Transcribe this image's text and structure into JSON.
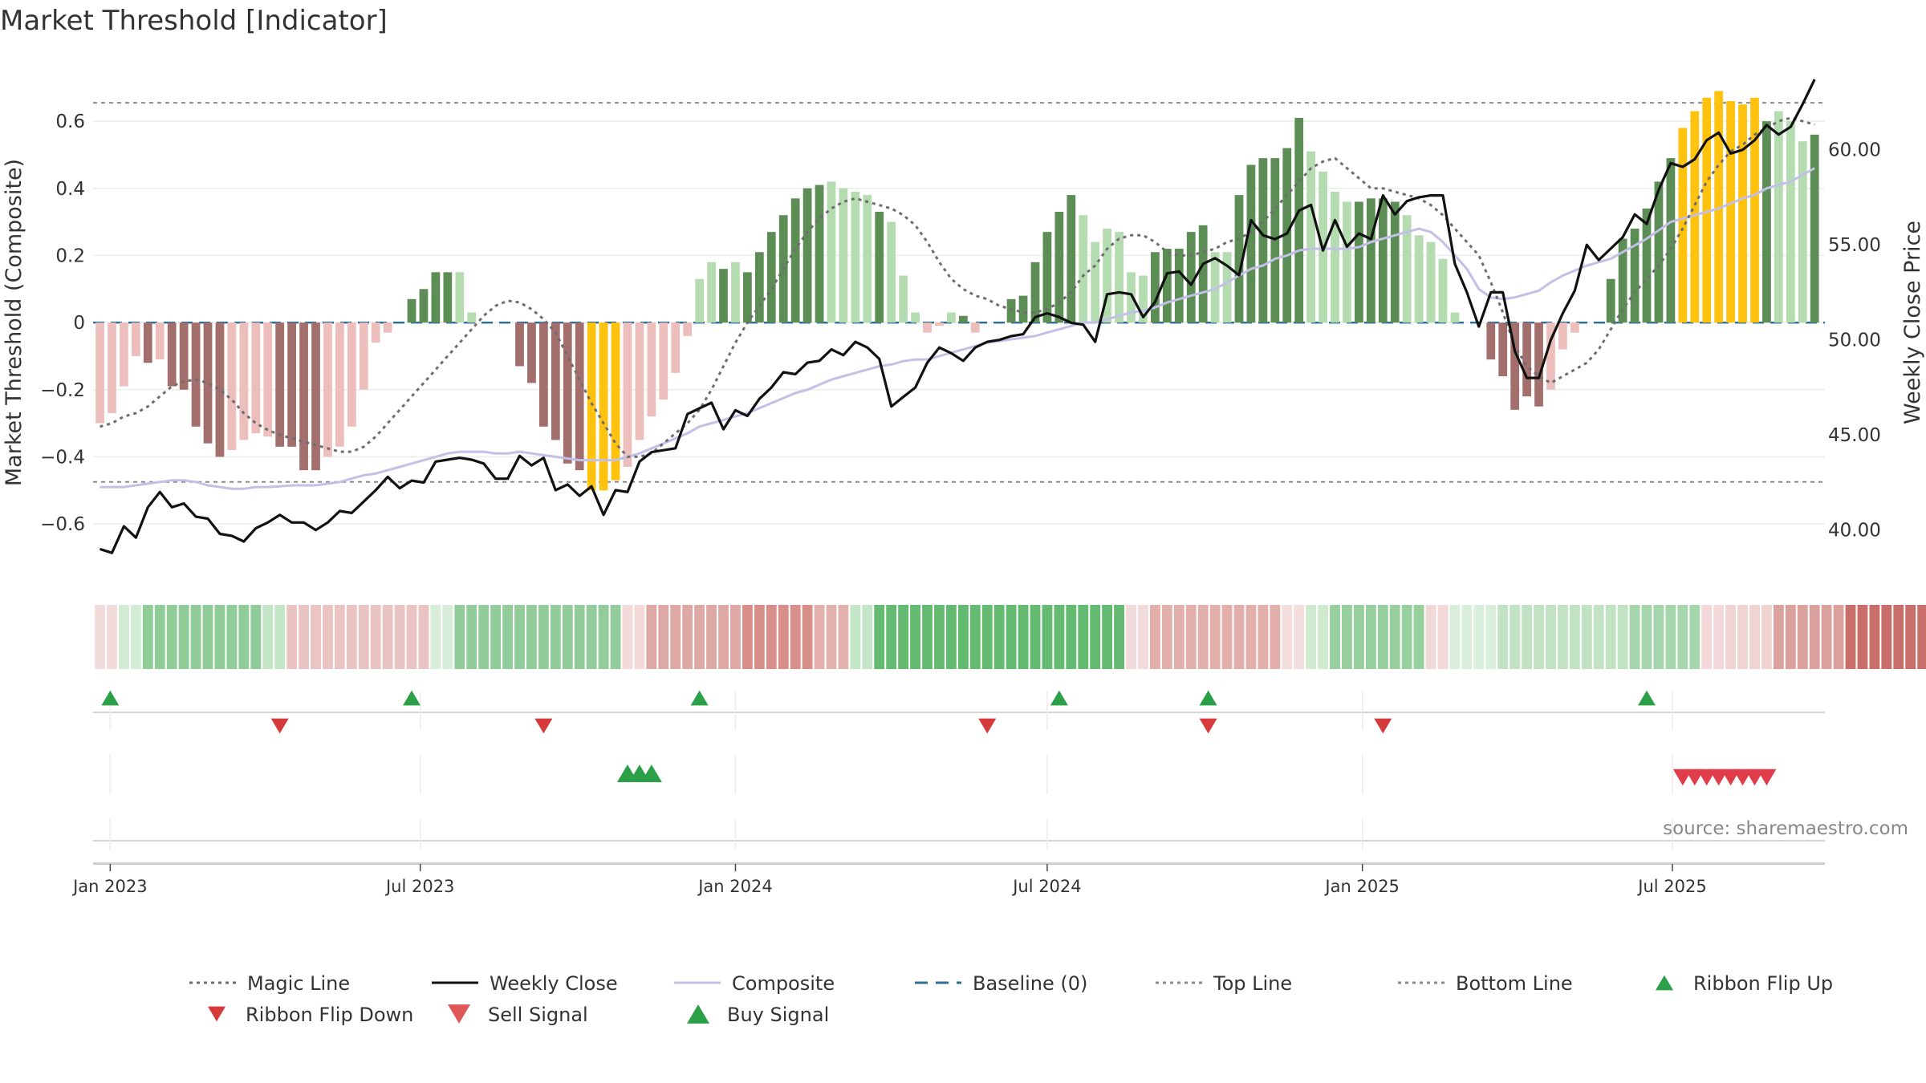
{
  "title": "Market Threshold [Indicator]",
  "source": "source: sharemaestro.com",
  "chart_data": {
    "type": "bar",
    "x_start": "2022-12-26",
    "x_step_days": 7,
    "x_range": [
      "2022-12-22",
      "2025-09-28"
    ],
    "y_left_label": "Market Threshold (Composite)",
    "y_left_range": [
      -0.76,
      0.77
    ],
    "y_left_ticks": [
      "0.6",
      "0.4",
      "0.2",
      "0",
      "−0.2",
      "−0.4",
      "−0.6"
    ],
    "y_right_label": "Weekly Close Price",
    "y_right_range": [
      37.5,
      64.5
    ],
    "y_right_ticks": [
      "60.00",
      "55.00",
      "50.00",
      "45.00",
      "40.00"
    ],
    "x_ticks": [
      {
        "label": "Jan 2023",
        "date": "2023-01-01"
      },
      {
        "label": "Jul 2023",
        "date": "2023-07-01"
      },
      {
        "label": "Jan 2024",
        "date": "2024-01-01"
      },
      {
        "label": "Jul 2024",
        "date": "2024-07-01"
      },
      {
        "label": "Jan 2025",
        "date": "2025-01-01"
      },
      {
        "label": "Jul 2025",
        "date": "2025-07-01"
      }
    ],
    "top_line": 0.655,
    "bottom_line": -0.475,
    "grid": true,
    "legend_position": "bottom",
    "colors": {
      "strong_up": "#5b8d55",
      "weak_up": "#b5dbb0",
      "strong_down": "#a36f6c",
      "weak_down": "#ecbfbc",
      "extreme": "#ffc20e",
      "close": "#111111",
      "composite": "#c3bfe6",
      "magic": "#6e6e6e",
      "baseline": "#2e6f96",
      "buy": "#2ca048",
      "sell": "#d73a3a"
    },
    "series": {
      "composite_bars": [
        -0.3,
        -0.27,
        -0.19,
        -0.1,
        -0.12,
        -0.11,
        -0.19,
        -0.2,
        -0.31,
        -0.36,
        -0.4,
        -0.38,
        -0.35,
        -0.33,
        -0.34,
        -0.37,
        -0.37,
        -0.44,
        -0.44,
        -0.4,
        -0.37,
        -0.31,
        -0.2,
        -0.06,
        -0.03,
        0.0,
        0.07,
        0.1,
        0.15,
        0.15,
        0.15,
        0.03,
        0.0,
        0.0,
        0.0,
        -0.13,
        -0.18,
        -0.31,
        -0.35,
        -0.42,
        -0.44,
        -0.5,
        -0.5,
        -0.47,
        -0.43,
        -0.35,
        -0.28,
        -0.23,
        -0.15,
        -0.04,
        0.13,
        0.18,
        0.16,
        0.18,
        0.15,
        0.21,
        0.27,
        0.32,
        0.37,
        0.4,
        0.41,
        0.42,
        0.4,
        0.39,
        0.38,
        0.33,
        0.3,
        0.14,
        0.03,
        -0.03,
        -0.01,
        0.03,
        0.02,
        -0.03,
        0.0,
        0.0,
        0.07,
        0.08,
        0.18,
        0.27,
        0.33,
        0.38,
        0.32,
        0.24,
        0.28,
        0.27,
        0.15,
        0.14,
        0.21,
        0.22,
        0.22,
        0.27,
        0.29,
        0.21,
        0.21,
        0.38,
        0.47,
        0.49,
        0.49,
        0.52,
        0.61,
        0.51,
        0.45,
        0.39,
        0.36,
        0.36,
        0.37,
        0.37,
        0.36,
        0.32,
        0.26,
        0.24,
        0.19,
        0.03,
        0.0,
        0.0,
        -0.11,
        -0.16,
        -0.26,
        -0.22,
        -0.25,
        -0.2,
        -0.08,
        -0.03,
        0.0,
        0.0,
        0.13,
        0.25,
        0.28,
        0.34,
        0.42,
        0.49,
        0.58,
        0.63,
        0.67,
        0.69,
        0.66,
        0.65,
        0.67,
        0.6,
        0.63,
        0.6,
        0.54,
        0.56
      ],
      "bar_types": [
        "W",
        "W",
        "W",
        "W",
        "S",
        "W",
        "S",
        "S",
        "S",
        "S",
        "S",
        "W",
        "W",
        "W",
        "W",
        "S",
        "S",
        "S",
        "S",
        "W",
        "W",
        "W",
        "W",
        "W",
        "W",
        "W",
        "S",
        "S",
        "S",
        "S",
        "W",
        "W",
        "W",
        "W",
        "W",
        "S",
        "S",
        "S",
        "S",
        "S",
        "S",
        "E",
        "E",
        "E",
        "W",
        "W",
        "W",
        "W",
        "W",
        "W",
        "W",
        "W",
        "S",
        "W",
        "S",
        "S",
        "S",
        "S",
        "S",
        "S",
        "S",
        "W",
        "W",
        "W",
        "W",
        "S",
        "W",
        "W",
        "W",
        "W",
        "W",
        "W",
        "S",
        "W",
        "W",
        "W",
        "S",
        "S",
        "S",
        "S",
        "S",
        "S",
        "W",
        "W",
        "W",
        "W",
        "W",
        "W",
        "S",
        "S",
        "S",
        "S",
        "S",
        "W",
        "W",
        "S",
        "S",
        "S",
        "S",
        "S",
        "S",
        "W",
        "W",
        "W",
        "W",
        "S",
        "S",
        "S",
        "S",
        "W",
        "W",
        "W",
        "W",
        "W",
        "W",
        "W",
        "S",
        "S",
        "S",
        "S",
        "S",
        "W",
        "W",
        "W",
        "W",
        "W",
        "S",
        "S",
        "S",
        "S",
        "S",
        "S",
        "E",
        "E",
        "E",
        "E",
        "E",
        "E",
        "E",
        "S",
        "W",
        "W",
        "W",
        "S"
      ],
      "weekly_close": [
        39.0,
        38.8,
        40.2,
        39.6,
        41.2,
        42.0,
        41.2,
        41.4,
        40.7,
        40.6,
        39.8,
        39.7,
        39.4,
        40.1,
        40.4,
        40.8,
        40.4,
        40.4,
        40.0,
        40.4,
        41.0,
        40.9,
        41.5,
        42.1,
        42.8,
        42.2,
        42.6,
        42.5,
        43.6,
        43.7,
        43.8,
        43.7,
        43.5,
        42.7,
        42.7,
        43.9,
        43.4,
        43.8,
        42.1,
        42.4,
        41.8,
        42.3,
        40.8,
        42.1,
        42.0,
        43.6,
        44.1,
        44.2,
        44.3,
        46.1,
        46.4,
        46.7,
        45.3,
        46.3,
        46.0,
        46.9,
        47.5,
        48.3,
        48.2,
        48.8,
        48.9,
        49.5,
        49.2,
        49.9,
        49.6,
        49.0,
        46.5,
        47.0,
        47.5,
        48.8,
        49.6,
        49.3,
        48.9,
        49.6,
        49.9,
        50.0,
        50.2,
        50.3,
        51.2,
        51.4,
        51.2,
        50.9,
        50.8,
        49.9,
        52.4,
        52.5,
        52.4,
        51.2,
        52.0,
        53.5,
        53.6,
        52.9,
        54.0,
        54.3,
        53.9,
        53.4,
        56.3,
        55.5,
        55.3,
        55.6,
        56.8,
        57.1,
        54.7,
        56.3,
        54.9,
        55.6,
        55.3,
        57.6,
        56.6,
        57.3,
        57.5,
        57.6,
        57.6,
        54.0,
        52.5,
        50.7,
        52.5,
        52.5,
        49.4,
        48.0,
        48.0,
        50.0,
        51.4,
        52.6,
        55.0,
        54.2,
        54.8,
        55.4,
        56.6,
        56.1,
        57.9,
        59.3,
        59.1,
        59.5,
        60.5,
        60.9,
        59.8,
        60.0,
        60.5,
        61.3,
        60.8,
        61.2,
        62.4,
        63.7
      ],
      "composite_line": [
        -0.49,
        -0.49,
        -0.49,
        -0.485,
        -0.48,
        -0.475,
        -0.47,
        -0.47,
        -0.475,
        -0.485,
        -0.49,
        -0.495,
        -0.495,
        -0.49,
        -0.49,
        -0.488,
        -0.485,
        -0.485,
        -0.485,
        -0.48,
        -0.475,
        -0.465,
        -0.455,
        -0.45,
        -0.44,
        -0.43,
        -0.42,
        -0.41,
        -0.4,
        -0.39,
        -0.385,
        -0.385,
        -0.385,
        -0.39,
        -0.39,
        -0.385,
        -0.39,
        -0.395,
        -0.4,
        -0.405,
        -0.41,
        -0.41,
        -0.41,
        -0.41,
        -0.4,
        -0.39,
        -0.375,
        -0.36,
        -0.345,
        -0.33,
        -0.31,
        -0.3,
        -0.29,
        -0.28,
        -0.27,
        -0.255,
        -0.24,
        -0.225,
        -0.21,
        -0.2,
        -0.185,
        -0.17,
        -0.16,
        -0.15,
        -0.14,
        -0.13,
        -0.125,
        -0.115,
        -0.11,
        -0.11,
        -0.1,
        -0.09,
        -0.08,
        -0.07,
        -0.06,
        -0.055,
        -0.05,
        -0.045,
        -0.04,
        -0.03,
        -0.02,
        -0.01,
        0.0,
        0.0,
        0.01,
        0.02,
        0.03,
        0.035,
        0.045,
        0.06,
        0.07,
        0.08,
        0.09,
        0.1,
        0.12,
        0.14,
        0.16,
        0.17,
        0.19,
        0.2,
        0.215,
        0.22,
        0.22,
        0.22,
        0.22,
        0.225,
        0.24,
        0.25,
        0.26,
        0.27,
        0.28,
        0.27,
        0.24,
        0.2,
        0.16,
        0.1,
        0.075,
        0.07,
        0.075,
        0.085,
        0.095,
        0.12,
        0.14,
        0.155,
        0.17,
        0.18,
        0.19,
        0.21,
        0.23,
        0.25,
        0.275,
        0.3,
        0.31,
        0.32,
        0.33,
        0.34,
        0.355,
        0.37,
        0.38,
        0.4,
        0.41,
        0.42,
        0.44,
        0.46
      ],
      "magic_line": [
        -0.31,
        -0.3,
        -0.28,
        -0.27,
        -0.25,
        -0.22,
        -0.19,
        -0.175,
        -0.17,
        -0.18,
        -0.2,
        -0.23,
        -0.27,
        -0.3,
        -0.32,
        -0.335,
        -0.345,
        -0.355,
        -0.365,
        -0.375,
        -0.385,
        -0.385,
        -0.37,
        -0.34,
        -0.3,
        -0.26,
        -0.22,
        -0.18,
        -0.14,
        -0.1,
        -0.06,
        -0.02,
        0.02,
        0.05,
        0.065,
        0.06,
        0.04,
        0.01,
        -0.03,
        -0.1,
        -0.17,
        -0.24,
        -0.3,
        -0.36,
        -0.4,
        -0.4,
        -0.39,
        -0.36,
        -0.33,
        -0.3,
        -0.26,
        -0.2,
        -0.13,
        -0.06,
        0.0,
        0.05,
        0.1,
        0.16,
        0.22,
        0.27,
        0.31,
        0.34,
        0.36,
        0.37,
        0.36,
        0.35,
        0.34,
        0.32,
        0.29,
        0.24,
        0.18,
        0.13,
        0.1,
        0.08,
        0.07,
        0.05,
        0.04,
        0.03,
        0.03,
        0.04,
        0.06,
        0.09,
        0.14,
        0.17,
        0.22,
        0.25,
        0.26,
        0.26,
        0.24,
        0.21,
        0.2,
        0.2,
        0.21,
        0.22,
        0.24,
        0.25,
        0.27,
        0.3,
        0.34,
        0.38,
        0.42,
        0.46,
        0.48,
        0.49,
        0.46,
        0.43,
        0.4,
        0.4,
        0.39,
        0.38,
        0.37,
        0.35,
        0.32,
        0.28,
        0.24,
        0.2,
        0.12,
        0.03,
        -0.07,
        -0.13,
        -0.16,
        -0.18,
        -0.16,
        -0.14,
        -0.12,
        -0.08,
        -0.02,
        0.04,
        0.09,
        0.13,
        0.17,
        0.22,
        0.28,
        0.35,
        0.42,
        0.47,
        0.51,
        0.53,
        0.56,
        0.58,
        0.6,
        0.61,
        0.6,
        0.59
      ]
    },
    "ribbon": [
      {
        "n": 2,
        "color": "#f2dcdb"
      },
      {
        "n": 2,
        "color": "#d3ecd5"
      },
      {
        "n": 10,
        "color": "#8fcc98"
      },
      {
        "n": 2,
        "color": "#c4e6c8"
      },
      {
        "n": 12,
        "color": "#eac4c2"
      },
      {
        "n": 2,
        "color": "#d7edd9"
      },
      {
        "n": 14,
        "color": "#92cc9b"
      },
      {
        "n": 2,
        "color": "#f2dad8"
      },
      {
        "n": 8,
        "color": "#dea8a4"
      },
      {
        "n": 6,
        "color": "#d88f8a"
      },
      {
        "n": 3,
        "color": "#e3b2ae"
      },
      {
        "n": 2,
        "color": "#c4e6c8"
      },
      {
        "n": 21,
        "color": "#64ba70"
      },
      {
        "n": 2,
        "color": "#f1dada"
      },
      {
        "n": 11,
        "color": "#e3afab"
      },
      {
        "n": 2,
        "color": "#f3dddd"
      },
      {
        "n": 2,
        "color": "#cfeacf"
      },
      {
        "n": 8,
        "color": "#98cf9f"
      },
      {
        "n": 2,
        "color": "#f1d9d8"
      },
      {
        "n": 4,
        "color": "#daeedc"
      },
      {
        "n": 11,
        "color": "#c1e3c3"
      },
      {
        "n": 6,
        "color": "#a6d6ac"
      },
      {
        "n": 2,
        "color": "#f2d8d8"
      },
      {
        "n": 4,
        "color": "#efd4d2"
      },
      {
        "n": 6,
        "color": "#dba19c"
      },
      {
        "n": 7,
        "color": "#c96f69"
      },
      {
        "n": 2,
        "color": "#e7b9b6"
      },
      {
        "n": 2,
        "color": "#c3e4c7"
      },
      {
        "n": 6,
        "color": "#78c282"
      },
      {
        "n": 6,
        "color": "#3fa752"
      },
      {
        "n": 6,
        "color": "#78c282"
      },
      {
        "n": 1,
        "color": "#b2d9b6"
      }
    ],
    "markers": {
      "ribbon_flip_up": [
        "2023-01-01",
        "2023-06-26",
        "2023-12-11",
        "2024-07-08",
        "2024-10-03",
        "2025-06-16"
      ],
      "ribbon_flip_down": [
        "2023-04-10",
        "2023-09-11",
        "2024-05-27",
        "2024-10-03",
        "2025-01-13"
      ],
      "buy_signal": [
        "2023-10-30",
        "2023-11-06",
        "2023-11-13"
      ],
      "sell_signal": [
        "2025-07-07",
        "2025-07-14",
        "2025-07-21",
        "2025-07-28",
        "2025-08-04",
        "2025-08-11",
        "2025-08-18",
        "2025-08-25"
      ]
    }
  },
  "legend": [
    {
      "label": "Magic Line",
      "kind": "dotted-line",
      "color": "#6e6e6e"
    },
    {
      "label": "Weekly Close",
      "kind": "line",
      "color": "#111111"
    },
    {
      "label": "Composite",
      "kind": "line",
      "color": "#c3bfe6"
    },
    {
      "label": "Baseline (0)",
      "kind": "dashed-line",
      "color": "#2e6f96"
    },
    {
      "label": "Top Line",
      "kind": "dotted-line",
      "color": "#8a8a8a"
    },
    {
      "label": "Bottom Line",
      "kind": "dotted-line",
      "color": "#8a8a8a"
    },
    {
      "label": "Ribbon Flip Up",
      "kind": "triangle-up",
      "color": "#2ca048"
    },
    {
      "label": "Ribbon Flip Down",
      "kind": "triangle-down",
      "color": "#d73a3a"
    },
    {
      "label": "Sell Signal",
      "kind": "triangle-down",
      "color": "#e05555"
    },
    {
      "label": "Buy Signal",
      "kind": "triangle-up",
      "color": "#2ca048"
    }
  ]
}
